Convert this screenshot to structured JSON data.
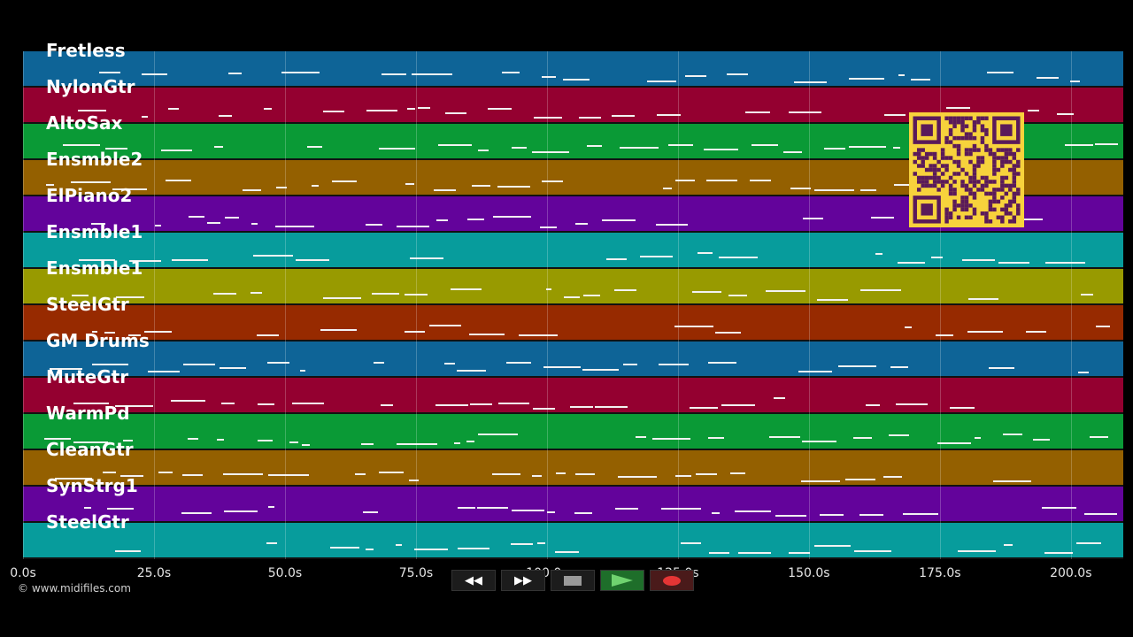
{
  "tracks": [
    {
      "name": "Fretless",
      "color": "#0e6497"
    },
    {
      "name": "NylonGtr",
      "color": "#940030"
    },
    {
      "name": "AltoSax",
      "color": "#0a9a36"
    },
    {
      "name": "Ensmble2",
      "color": "#946000"
    },
    {
      "name": "ElPiano2",
      "color": "#63039b"
    },
    {
      "name": "Ensmble1",
      "color": "#079c9c"
    },
    {
      "name": "Ensmble1",
      "color": "#989a00"
    },
    {
      "name": "SteelGtr",
      "color": "#972a00"
    },
    {
      "name": "GM Drums",
      "color": "#0e6497"
    },
    {
      "name": "MuteGtr",
      "color": "#940030"
    },
    {
      "name": "WarmPd",
      "color": "#0a9a36"
    },
    {
      "name": "CleanGtr",
      "color": "#946000"
    },
    {
      "name": "SynStrg1",
      "color": "#63039b"
    },
    {
      "name": "SteelGtr",
      "color": "#079c9c"
    }
  ],
  "timeline": {
    "ticks": [
      "0.0s",
      "25.0s",
      "50.0s",
      "75.0s",
      "100.0s",
      "125.0s",
      "150.0s",
      "175.0s",
      "200.0s"
    ],
    "tick_values": [
      0,
      25,
      50,
      75,
      100,
      125,
      150,
      175,
      200
    ],
    "range": [
      0,
      210
    ]
  },
  "copyright": "© www.midifiles.com",
  "transport": {
    "rewind_icon": "◀◀",
    "forward_icon": "▶▶",
    "buttons": [
      "rewind",
      "fast-forward",
      "stop",
      "play",
      "record"
    ]
  },
  "qr_code": {
    "color": "#f7d23c",
    "ink": "#5a1a5a"
  }
}
